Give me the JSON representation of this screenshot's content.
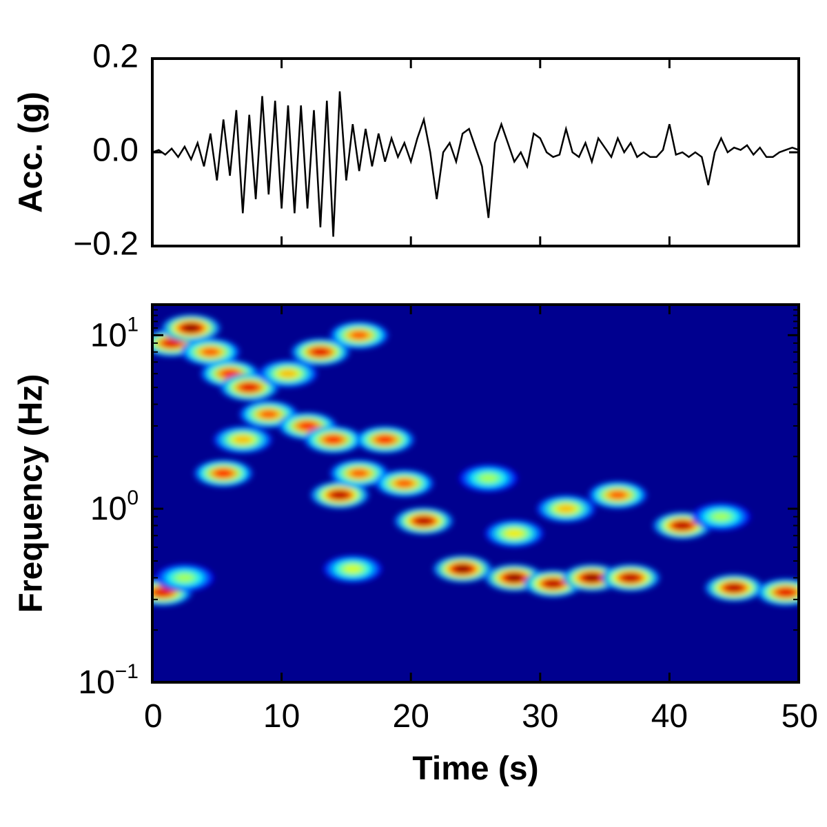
{
  "chart_data": [
    {
      "type": "line",
      "ylabel": "Acc. (g)",
      "xlim": [
        0,
        50
      ],
      "ylim": [
        -0.2,
        0.2
      ],
      "y_ticks": [
        "0.2",
        "0.0",
        "−0.2"
      ],
      "x_tick_labels_shown": false,
      "grid": false,
      "series": [
        {
          "color": "#000000",
          "x": [
            0,
            0.5,
            1,
            1.5,
            2,
            2.5,
            3,
            3.5,
            4,
            4.5,
            5,
            5.5,
            6,
            6.5,
            7,
            7.5,
            8,
            8.5,
            9,
            9.5,
            10,
            10.5,
            11,
            11.5,
            12,
            12.5,
            13,
            13.5,
            14,
            14.5,
            15,
            15.5,
            16,
            16.5,
            17,
            17.5,
            18,
            18.5,
            19,
            19.5,
            20,
            20.5,
            21,
            21.5,
            22,
            22.5,
            23,
            23.5,
            24,
            24.5,
            25,
            25.5,
            26,
            26.5,
            27,
            27.5,
            28,
            28.5,
            29,
            29.5,
            30,
            30.5,
            31,
            31.5,
            32,
            32.5,
            33,
            33.5,
            34,
            34.5,
            35,
            35.5,
            36,
            36.5,
            37,
            37.5,
            38,
            38.5,
            39,
            39.5,
            40,
            40.5,
            41,
            41.5,
            42,
            42.5,
            43,
            43.5,
            44,
            44.5,
            45,
            45.5,
            46,
            46.5,
            47,
            47.5,
            48,
            48.5,
            49,
            49.5,
            50
          ],
          "y": [
            0.0,
            0.005,
            -0.005,
            0.008,
            -0.01,
            0.012,
            -0.015,
            0.02,
            -0.03,
            0.04,
            -0.06,
            0.07,
            -0.05,
            0.09,
            -0.13,
            0.08,
            -0.1,
            0.12,
            -0.09,
            0.11,
            -0.12,
            0.1,
            -0.13,
            0.1,
            -0.12,
            0.09,
            -0.16,
            0.11,
            -0.18,
            0.13,
            -0.06,
            0.06,
            -0.04,
            0.05,
            -0.03,
            0.04,
            -0.02,
            0.03,
            -0.01,
            0.02,
            -0.02,
            0.03,
            0.07,
            0.0,
            -0.1,
            0.0,
            0.02,
            -0.02,
            0.04,
            0.05,
            0.01,
            -0.03,
            -0.14,
            0.02,
            0.06,
            0.02,
            -0.02,
            0.0,
            -0.03,
            0.04,
            0.03,
            0.0,
            -0.01,
            -0.005,
            0.05,
            0.0,
            -0.01,
            0.02,
            -0.02,
            0.03,
            0.01,
            -0.01,
            0.03,
            0.0,
            0.02,
            -0.01,
            0.0,
            -0.01,
            -0.01,
            0.005,
            0.06,
            -0.005,
            0.0,
            -0.01,
            0.0,
            -0.01,
            -0.07,
            0.0,
            0.03,
            0.0,
            0.01,
            0.005,
            0.015,
            -0.005,
            0.01,
            -0.01,
            -0.01,
            0.0,
            0.005,
            0.01,
            0.005
          ]
        }
      ]
    },
    {
      "type": "heatmap",
      "xlabel": "Time (s)",
      "ylabel": "Frequency (Hz)",
      "xlim": [
        0,
        50
      ],
      "ylim": [
        0.1,
        15
      ],
      "y_scale": "log",
      "x_ticks": [
        "0",
        "10",
        "20",
        "30",
        "40",
        "50"
      ],
      "y_ticks": [
        {
          "base": "10",
          "exp": "1"
        },
        {
          "base": "10",
          "exp": "0"
        },
        {
          "base": "10",
          "exp": "−1"
        }
      ],
      "colormap": "jet",
      "background": "#00008f",
      "grid": false,
      "blobs": [
        {
          "t": 1.5,
          "f": 9,
          "v": 0.9
        },
        {
          "t": 3,
          "f": 11,
          "v": 1.0
        },
        {
          "t": 4.5,
          "f": 8,
          "v": 0.8
        },
        {
          "t": 6,
          "f": 6,
          "v": 0.85
        },
        {
          "t": 7.5,
          "f": 5,
          "v": 0.9
        },
        {
          "t": 9,
          "f": 3.5,
          "v": 0.8
        },
        {
          "t": 10.5,
          "f": 6,
          "v": 0.7
        },
        {
          "t": 12,
          "f": 3,
          "v": 0.85
        },
        {
          "t": 13,
          "f": 8,
          "v": 0.9
        },
        {
          "t": 14,
          "f": 2.5,
          "v": 0.85
        },
        {
          "t": 16,
          "f": 10,
          "v": 0.8
        },
        {
          "t": 5.5,
          "f": 1.6,
          "v": 0.85
        },
        {
          "t": 7,
          "f": 2.5,
          "v": 0.7
        },
        {
          "t": 14.5,
          "f": 1.2,
          "v": 0.95
        },
        {
          "t": 16,
          "f": 1.6,
          "v": 0.8
        },
        {
          "t": 18,
          "f": 2.5,
          "v": 0.85
        },
        {
          "t": 19.5,
          "f": 1.4,
          "v": 0.8
        },
        {
          "t": 21,
          "f": 0.85,
          "v": 0.95
        },
        {
          "t": 24,
          "f": 0.45,
          "v": 1.0
        },
        {
          "t": 28,
          "f": 0.4,
          "v": 1.0
        },
        {
          "t": 31,
          "f": 0.37,
          "v": 0.95
        },
        {
          "t": 34,
          "f": 0.4,
          "v": 1.0
        },
        {
          "t": 37,
          "f": 0.4,
          "v": 0.95
        },
        {
          "t": 41,
          "f": 0.8,
          "v": 0.95
        },
        {
          "t": 45,
          "f": 0.35,
          "v": 0.95
        },
        {
          "t": 49,
          "f": 0.33,
          "v": 0.9
        },
        {
          "t": 28,
          "f": 0.72,
          "v": 0.65
        },
        {
          "t": 32,
          "f": 1.0,
          "v": 0.7
        },
        {
          "t": 36,
          "f": 1.2,
          "v": 0.8
        },
        {
          "t": 26,
          "f": 1.5,
          "v": 0.55
        },
        {
          "t": 0.8,
          "f": 0.33,
          "v": 0.9
        },
        {
          "t": 2.5,
          "f": 0.4,
          "v": 0.55
        },
        {
          "t": 15.5,
          "f": 0.45,
          "v": 0.6
        },
        {
          "t": 44,
          "f": 0.9,
          "v": 0.55
        }
      ]
    }
  ]
}
